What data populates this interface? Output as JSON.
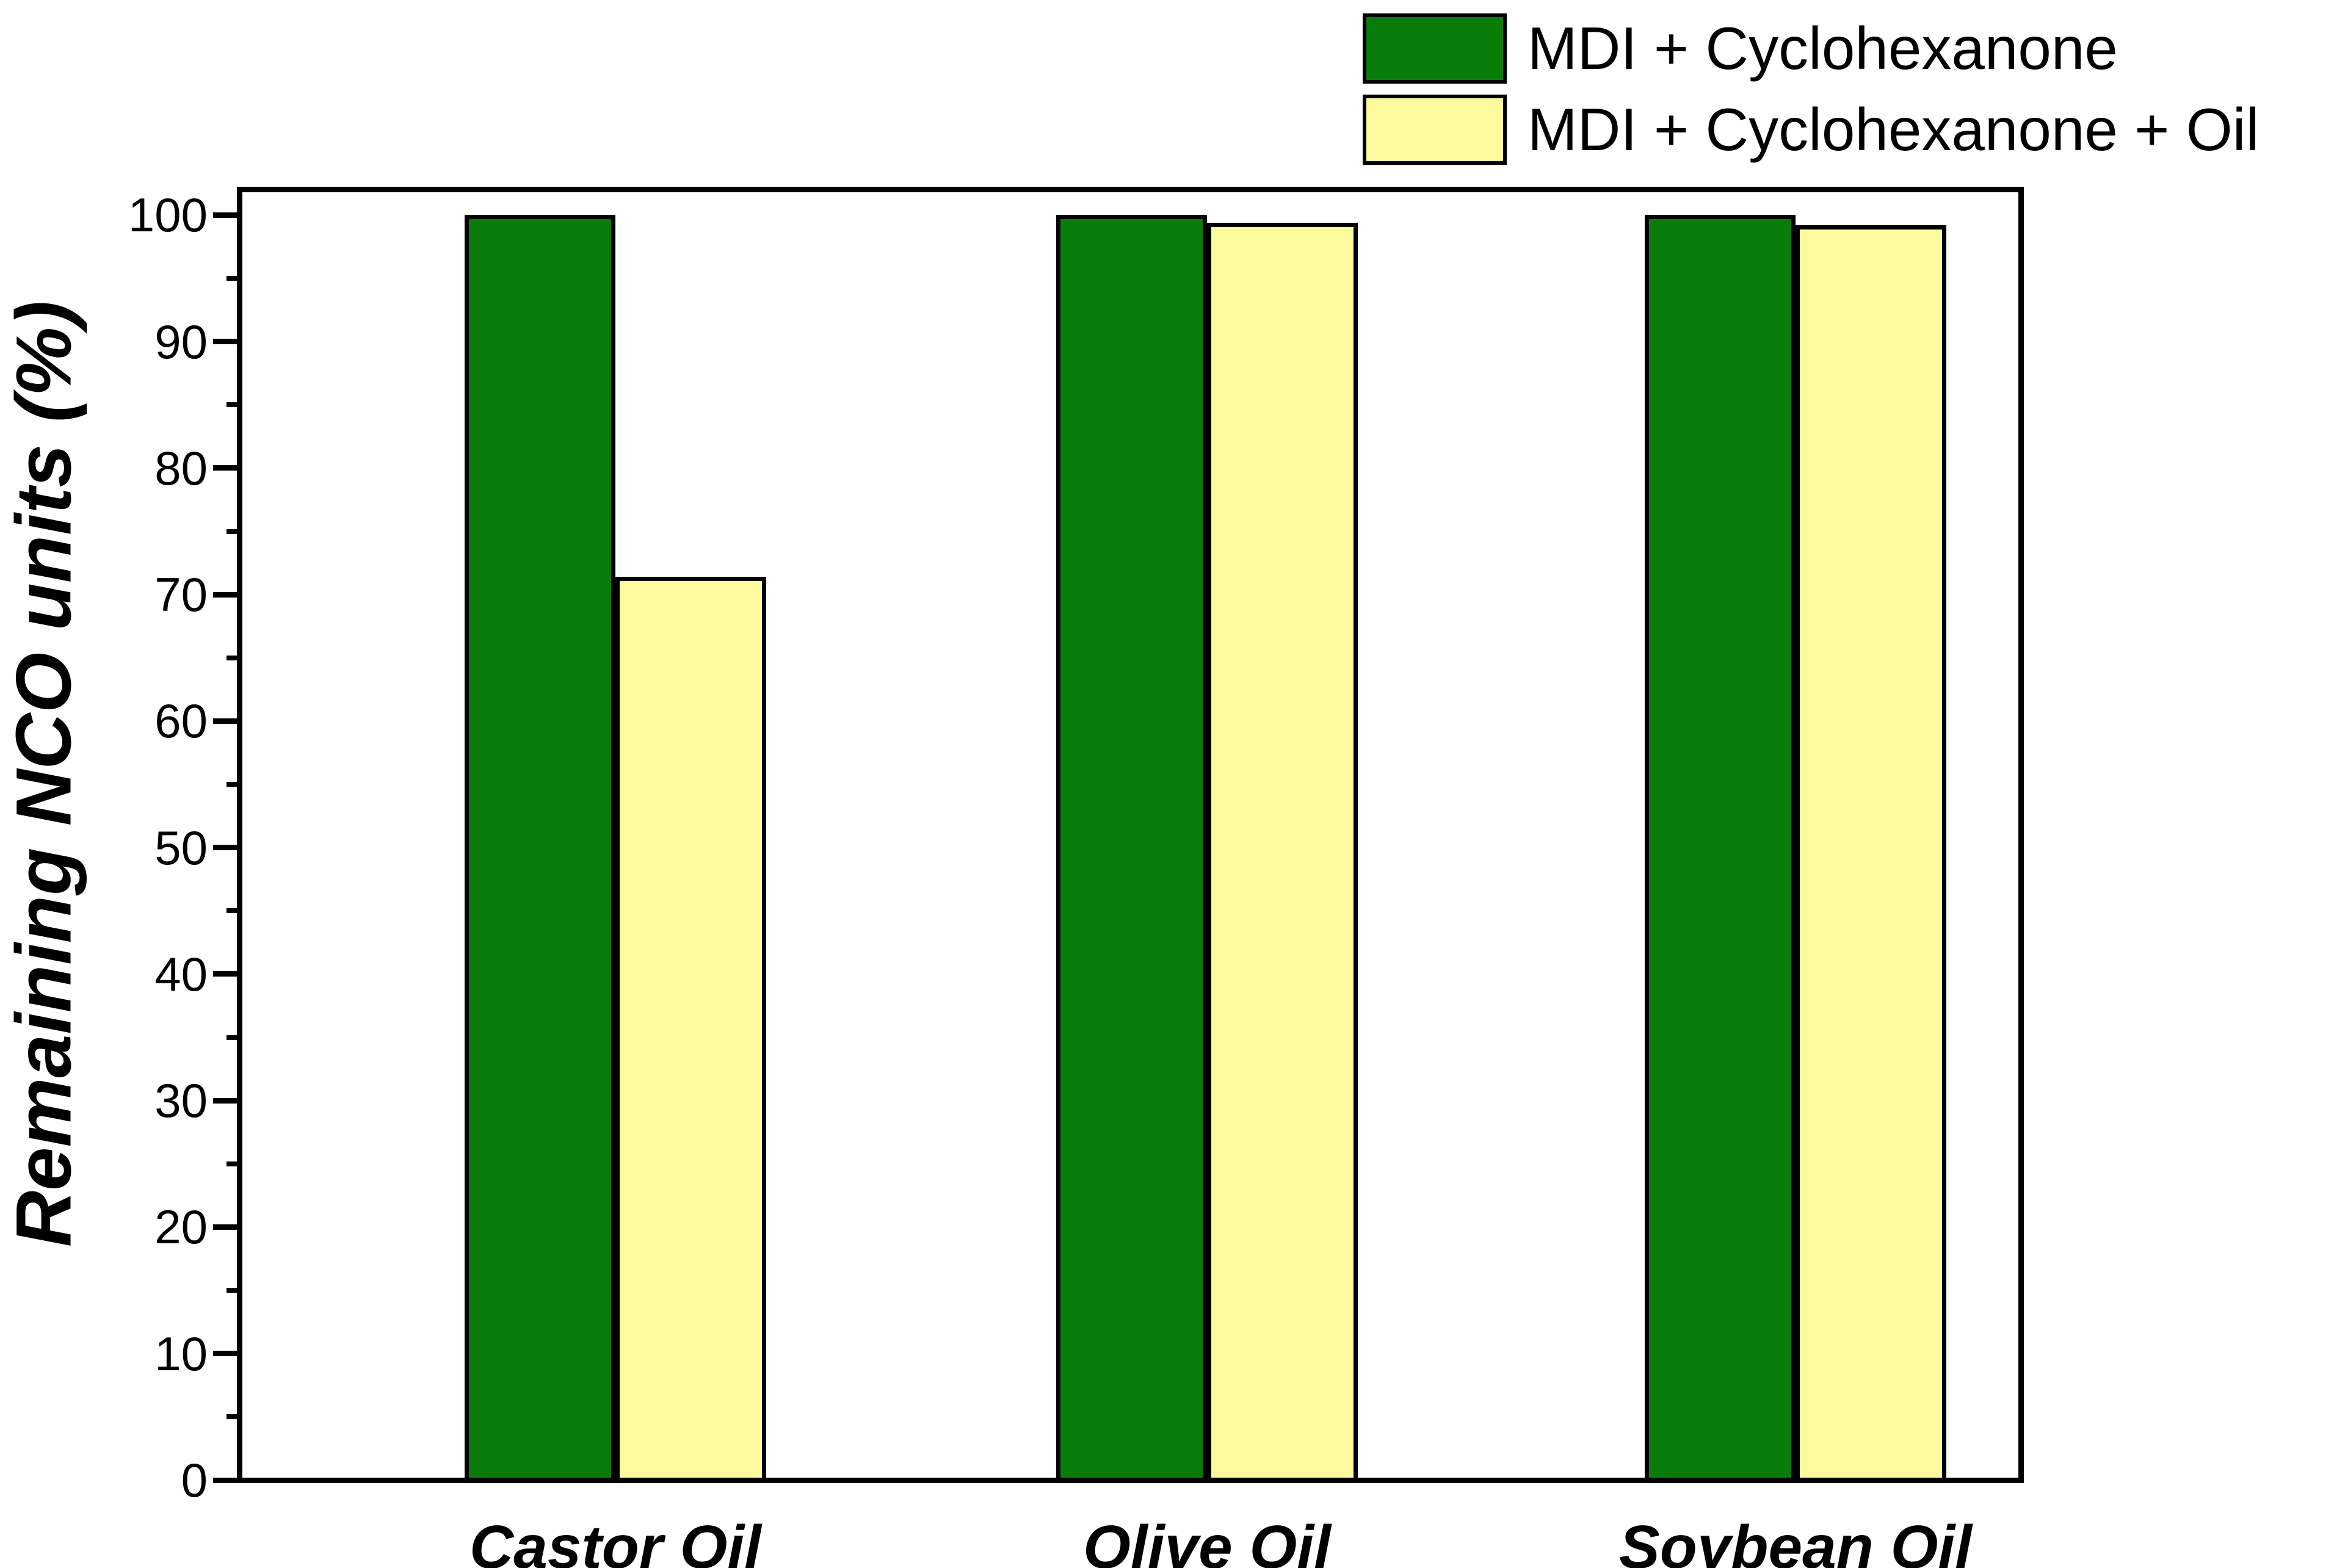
{
  "figure": {
    "background": "#ffffff"
  },
  "colors": {
    "series1": "#0a7c0a",
    "series2": "#fbfa9c",
    "axis": "#000000"
  },
  "legend": {
    "position": "top-right",
    "items": [
      {
        "label": "MDI + Cyclohexanone",
        "color": "#0a7c0a"
      },
      {
        "label": "MDI + Cyclohexanone + Oil",
        "color": "#fbfa9c"
      }
    ]
  },
  "chart_data": {
    "type": "bar",
    "title": "",
    "xlabel": "",
    "ylabel": "Remaining NCO units (%)",
    "categories": [
      "Castor Oil",
      "Olive Oil",
      "Soybean Oil"
    ],
    "series": [
      {
        "name": "MDI + Cyclohexanone",
        "color": "#0a7c0a",
        "values": [
          100,
          100,
          100
        ]
      },
      {
        "name": "MDI + Cyclohexanone + Oil",
        "color": "#fbfa9c",
        "values": [
          71.4,
          99.4,
          99.2
        ]
      }
    ],
    "ylim": [
      0,
      102
    ],
    "yticks": [
      0,
      10,
      20,
      30,
      40,
      50,
      60,
      70,
      80,
      90,
      100
    ],
    "ytick_minor_step": 5,
    "grid": false,
    "legend_position": "top-right",
    "bar_edge_color": "#000000"
  }
}
